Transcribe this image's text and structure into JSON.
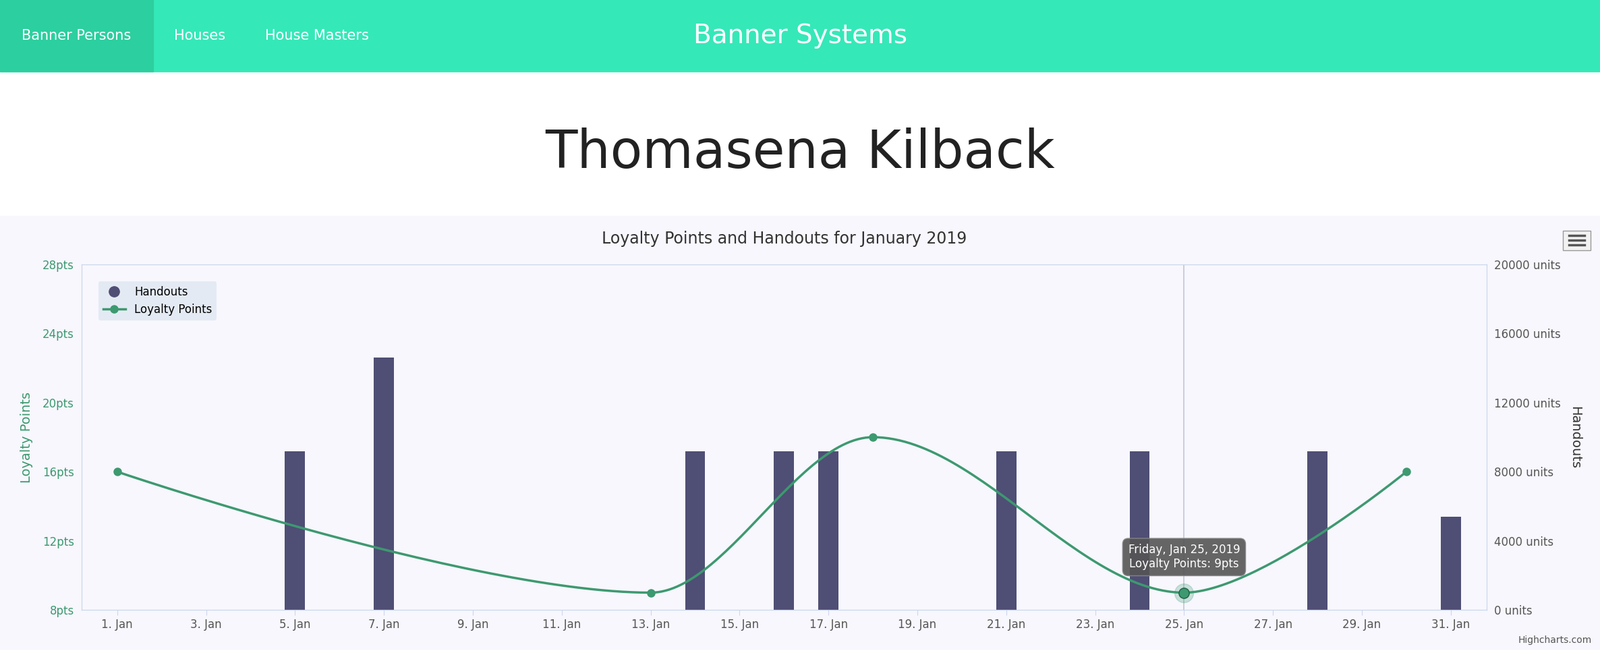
{
  "page": {
    "nav": [
      "Banner Persons",
      "Houses",
      "House Masters"
    ],
    "active_nav": "Banner Persons",
    "brand": "Banner Systems",
    "heading": "Thomasena Kilback",
    "credits": "Highcharts.com"
  },
  "chart_data": {
    "type": "combo",
    "title": "Loyalty Points and Handouts for January 2019",
    "y_label": "Loyalty Points",
    "y2_label": "Handouts",
    "xlim": [
      0.2,
      31.8
    ],
    "xticks": [
      {
        "value": 1,
        "label": "1. Jan"
      },
      {
        "value": 3,
        "label": "3. Jan"
      },
      {
        "value": 5,
        "label": "5. Jan"
      },
      {
        "value": 7,
        "label": "7. Jan"
      },
      {
        "value": 9,
        "label": "9. Jan"
      },
      {
        "value": 11,
        "label": "11. Jan"
      },
      {
        "value": 13,
        "label": "13. Jan"
      },
      {
        "value": 15,
        "label": "15. Jan"
      },
      {
        "value": 17,
        "label": "17. Jan"
      },
      {
        "value": 19,
        "label": "19. Jan"
      },
      {
        "value": 21,
        "label": "21. Jan"
      },
      {
        "value": 23,
        "label": "23. Jan"
      },
      {
        "value": 25,
        "label": "25. Jan"
      },
      {
        "value": 27,
        "label": "27. Jan"
      },
      {
        "value": 29,
        "label": "29. Jan"
      },
      {
        "value": 31,
        "label": "31. Jan"
      }
    ],
    "ylim": [
      8,
      28
    ],
    "yticks": [
      {
        "value": 8,
        "label": "8pts"
      },
      {
        "value": 12,
        "label": "12pts"
      },
      {
        "value": 16,
        "label": "16pts"
      },
      {
        "value": 20,
        "label": "20pts"
      },
      {
        "value": 24,
        "label": "24pts"
      },
      {
        "value": 28,
        "label": "28pts"
      }
    ],
    "y2lim": [
      0,
      20000
    ],
    "y2ticks": [
      {
        "value": 0,
        "label": "0 units"
      },
      {
        "value": 4000,
        "label": "4000 units"
      },
      {
        "value": 8000,
        "label": "8000 units"
      },
      {
        "value": 12000,
        "label": "12000 units"
      },
      {
        "value": 16000,
        "label": "16000 units"
      },
      {
        "value": 20000,
        "label": "20000 units"
      }
    ],
    "plot_bands": [
      [
        12,
        16
      ],
      [
        20,
        24
      ]
    ],
    "grid": true,
    "legend": "upper left",
    "series": [
      {
        "name": "Handouts",
        "type": "bar",
        "axis": "y2",
        "color": "#4f4e75",
        "x": [
          5,
          7,
          14,
          16,
          17,
          21,
          24,
          28,
          31
        ],
        "values": [
          9200,
          14600,
          9200,
          9200,
          9200,
          9200,
          9200,
          9200,
          5400
        ]
      },
      {
        "name": "Loyalty Points",
        "type": "spline",
        "color": "#3d9970",
        "marker": "circle",
        "line_style": "solid",
        "x": [
          1,
          13,
          18,
          25,
          30
        ],
        "values": [
          16,
          9,
          18,
          9,
          16
        ]
      }
    ],
    "annotations": [
      {
        "x": 25,
        "title": "Friday, Jan 25, 2019",
        "text": "Loyalty Points: 9pts"
      }
    ]
  }
}
